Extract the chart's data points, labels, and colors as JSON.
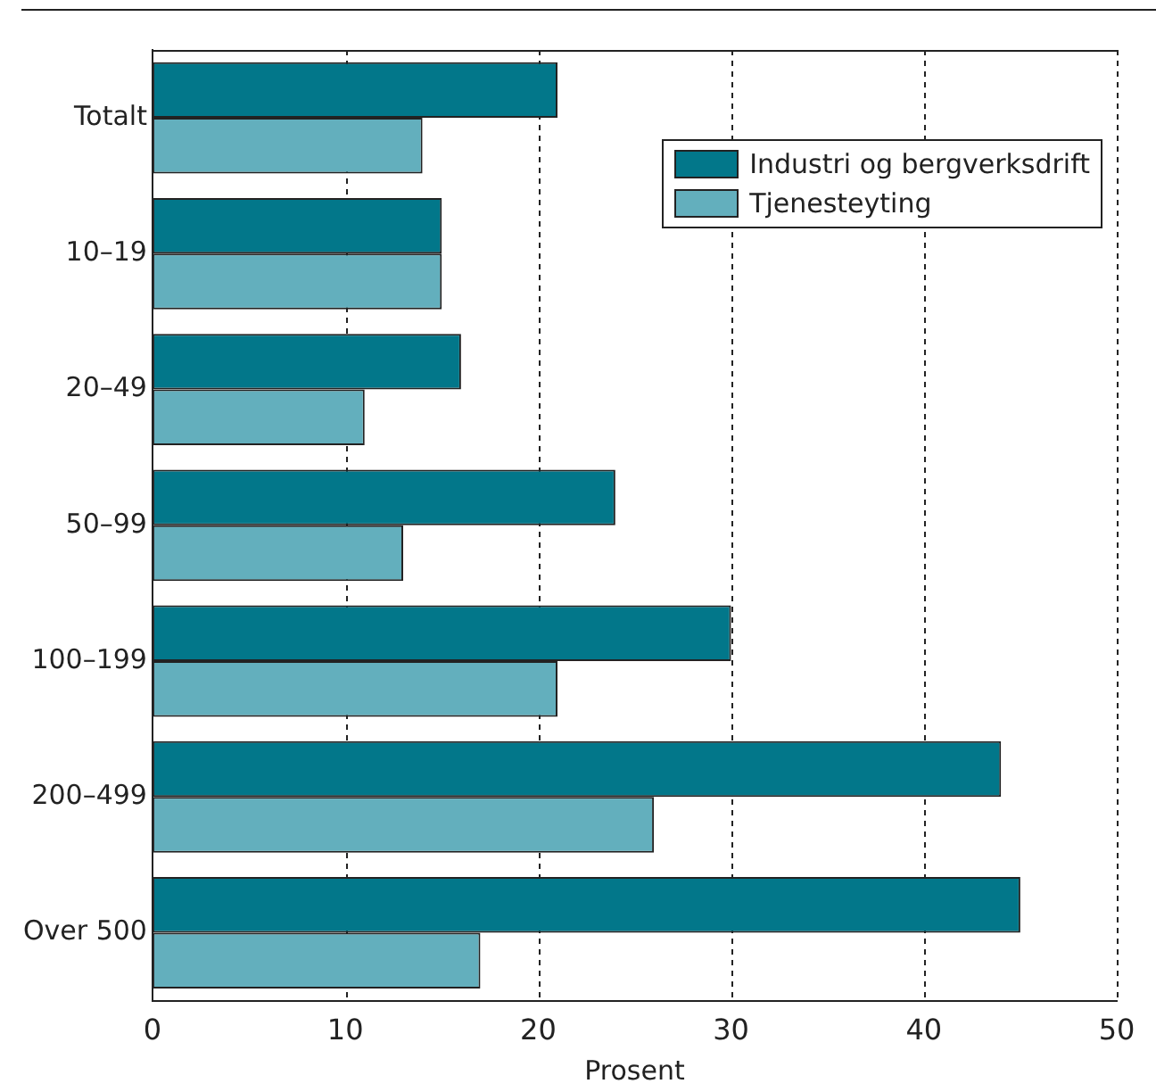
{
  "chart_data": {
    "type": "bar",
    "orientation": "horizontal",
    "xlabel": "Prosent",
    "categories": [
      "Totalt",
      "10–19",
      "20–49",
      "50–99",
      "100–199",
      "200–499",
      "Over 500"
    ],
    "series": [
      {
        "name": "Industri og bergverksdrift",
        "color": "#02778a",
        "values": [
          21,
          15,
          16,
          24,
          30,
          44,
          45
        ]
      },
      {
        "name": "Tjenesteyting",
        "color": "#63afbd",
        "values": [
          14,
          15,
          11,
          13,
          21,
          26,
          17
        ]
      }
    ],
    "xlim": [
      0,
      50
    ],
    "xticks": [
      0,
      10,
      20,
      30,
      40,
      50
    ],
    "grid": "x",
    "legend": "top right"
  }
}
